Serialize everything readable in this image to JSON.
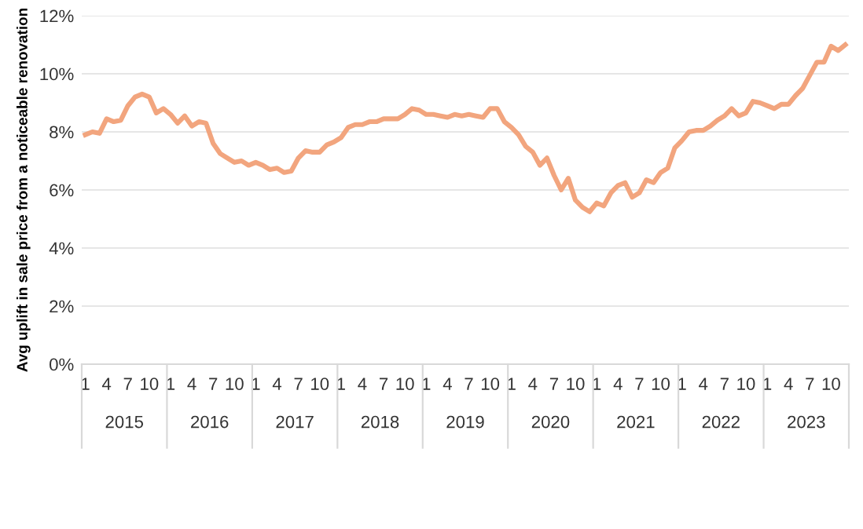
{
  "chart_data": {
    "type": "line",
    "ylabel": "Avg uplift in sale price from a noticeable renovation",
    "categories": [
      "1",
      null,
      null,
      "4",
      null,
      null,
      "7",
      null,
      null,
      "10",
      null,
      null,
      "1",
      null,
      null,
      "4",
      null,
      null,
      "7",
      null,
      null,
      "10",
      null,
      null,
      "1",
      null,
      null,
      "4",
      null,
      null,
      "7",
      null,
      null,
      "10",
      null,
      null,
      "1",
      null,
      null,
      "4",
      null,
      null,
      "7",
      null,
      null,
      "10",
      null,
      null,
      "1",
      null,
      null,
      "4",
      null,
      null,
      "7",
      null,
      null,
      "10",
      null,
      null,
      "1",
      null,
      null,
      "4",
      null,
      null,
      "7",
      null,
      null,
      "10",
      null,
      null,
      "1",
      null,
      null,
      "4",
      null,
      null,
      "7",
      null,
      null,
      "10",
      null,
      null,
      "1",
      null,
      null,
      "4",
      null,
      null,
      "7",
      null,
      null,
      "10",
      null,
      null,
      "1",
      null,
      null,
      "4",
      null,
      null,
      "7",
      null,
      null,
      "10",
      null,
      null
    ],
    "series": [
      {
        "color": "#f2a57e",
        "values": [
          7.9,
          8.0,
          7.95,
          8.45,
          8.35,
          8.4,
          8.9,
          9.2,
          9.3,
          9.2,
          8.65,
          8.8,
          8.6,
          8.3,
          8.55,
          8.2,
          8.35,
          8.3,
          7.6,
          7.25,
          7.1,
          6.95,
          7.0,
          6.85,
          6.95,
          6.85,
          6.7,
          6.75,
          6.6,
          6.65,
          7.1,
          7.35,
          7.3,
          7.3,
          7.55,
          7.65,
          7.8,
          8.15,
          8.25,
          8.25,
          8.35,
          8.35,
          8.45,
          8.45,
          8.45,
          8.6,
          8.8,
          8.75,
          8.6,
          8.6,
          8.55,
          8.5,
          8.6,
          8.55,
          8.6,
          8.55,
          8.5,
          8.8,
          8.8,
          8.35,
          8.15,
          7.9,
          7.5,
          7.3,
          6.85,
          7.1,
          6.5,
          6.0,
          6.4,
          5.65,
          5.4,
          5.25,
          5.55,
          5.45,
          5.9,
          6.15,
          6.25,
          5.75,
          5.9,
          6.35,
          6.25,
          6.6,
          6.75,
          7.45,
          7.7,
          8.0,
          8.05,
          8.05,
          8.2,
          8.4,
          8.55,
          8.8,
          8.55,
          8.65,
          9.05,
          9.0,
          8.9,
          8.8,
          8.95,
          8.95,
          9.25,
          9.5,
          9.95,
          10.4,
          10.4,
          10.95,
          10.8,
          11.0
        ]
      }
    ],
    "ylim": [
      0,
      12
    ],
    "yticks": [
      {
        "value": 0,
        "label": "0%"
      },
      {
        "value": 2,
        "label": "2%"
      },
      {
        "value": 4,
        "label": "4%"
      },
      {
        "value": 6,
        "label": "6%"
      },
      {
        "value": 8,
        "label": "8%"
      },
      {
        "value": 10,
        "label": "10%"
      },
      {
        "value": 12,
        "label": "12%"
      }
    ],
    "grid": "y",
    "line_style": "solid",
    "annotations": [
      "2015",
      "2016",
      "2017",
      "2018",
      "2019",
      "2020",
      "2021",
      "2022",
      "2023"
    ]
  }
}
